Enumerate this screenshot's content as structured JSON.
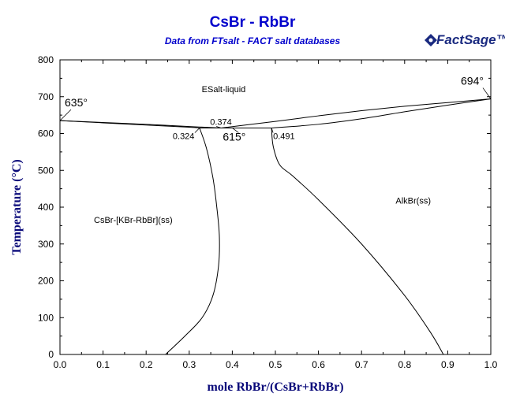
{
  "chart_data": {
    "type": "line",
    "title": "CsBr - RbBr",
    "subtitle": "Data from FTsalt - FACT salt databases",
    "xlabel": "mole RbBr/(CsBr+RbBr)",
    "ylabel": "Temperature (°C)",
    "xlim": [
      0,
      1
    ],
    "ylim": [
      0,
      800
    ],
    "xticks": [
      "0.0",
      "0.1",
      "0.2",
      "0.3",
      "0.4",
      "0.5",
      "0.6",
      "0.7",
      "0.8",
      "0.9",
      "1.0"
    ],
    "yticks": [
      "0",
      "100",
      "200",
      "300",
      "400",
      "500",
      "600",
      "700",
      "800"
    ],
    "grid": false,
    "series": [
      {
        "id": "liquidus-left",
        "points": [
          [
            0,
            635
          ],
          [
            0.1,
            630
          ],
          [
            0.2,
            625
          ],
          [
            0.3,
            619
          ],
          [
            0.374,
            615
          ]
        ]
      },
      {
        "id": "solidus-left",
        "points": [
          [
            0,
            635
          ],
          [
            0.1,
            629
          ],
          [
            0.2,
            623
          ],
          [
            0.3,
            617
          ],
          [
            0.324,
            615
          ]
        ]
      },
      {
        "id": "eutectic-line",
        "points": [
          [
            0.324,
            615
          ],
          [
            0.491,
            615
          ]
        ]
      },
      {
        "id": "liquidus-right",
        "points": [
          [
            0.374,
            615
          ],
          [
            0.5,
            633
          ],
          [
            0.6,
            648
          ],
          [
            0.7,
            662
          ],
          [
            0.8,
            674
          ],
          [
            0.9,
            684
          ],
          [
            1.0,
            694
          ]
        ]
      },
      {
        "id": "solidus-right",
        "points": [
          [
            0.491,
            615
          ],
          [
            0.6,
            625
          ],
          [
            0.7,
            640
          ],
          [
            0.8,
            659
          ],
          [
            0.9,
            677
          ],
          [
            1.0,
            694
          ]
        ]
      },
      {
        "id": "solvus-left",
        "points": [
          [
            0.324,
            615
          ],
          [
            0.34,
            560
          ],
          [
            0.355,
            480
          ],
          [
            0.364,
            400
          ],
          [
            0.37,
            320
          ],
          [
            0.368,
            240
          ],
          [
            0.355,
            160
          ],
          [
            0.33,
            100
          ],
          [
            0.29,
            50
          ],
          [
            0.245,
            0
          ]
        ]
      },
      {
        "id": "solvus-right",
        "points": [
          [
            0.491,
            615
          ],
          [
            0.495,
            565
          ],
          [
            0.51,
            515
          ],
          [
            0.54,
            485
          ],
          [
            0.6,
            420
          ],
          [
            0.7,
            300
          ],
          [
            0.8,
            160
          ],
          [
            0.86,
            60
          ],
          [
            0.89,
            0
          ]
        ]
      }
    ],
    "region_labels": [
      {
        "text": "ESalt-liquid",
        "x": 0.38,
        "y": 712
      },
      {
        "text": "CsBr-[KBr-RbBr](ss)",
        "x": 0.17,
        "y": 357
      },
      {
        "text": "AlkBr(ss)",
        "x": 0.82,
        "y": 410
      }
    ],
    "annotations": [
      {
        "text": "635°",
        "x": 0.0,
        "y": 635,
        "size": "large"
      },
      {
        "text": "694°",
        "x": 1.0,
        "y": 694,
        "size": "large"
      },
      {
        "text": "615°",
        "x": 0.4,
        "y": 615,
        "size": "large"
      },
      {
        "text": "0.374",
        "x": 0.374,
        "y": 615,
        "size": "small"
      },
      {
        "text": "0.324",
        "x": 0.324,
        "y": 615,
        "size": "small"
      },
      {
        "text": "0.491",
        "x": 0.491,
        "y": 615,
        "size": "small"
      }
    ],
    "colors": {
      "title": "#0000cc",
      "axis_label": "#0a0a7a",
      "lines": "#000000"
    }
  },
  "logo": {
    "text": "FactSage",
    "suffix": "™"
  }
}
